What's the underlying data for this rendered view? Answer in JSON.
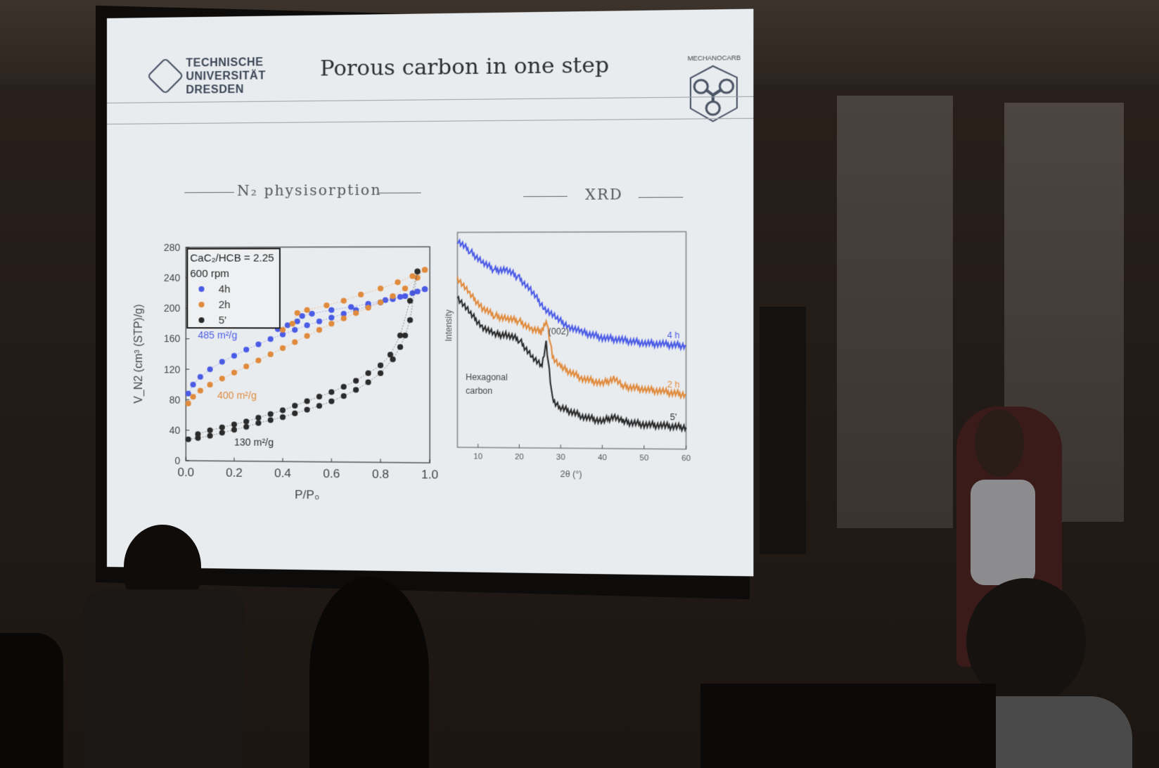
{
  "slide": {
    "title": "Porous carbon in one step",
    "logo_left": [
      "TECHNISCHE",
      "UNIVERSITÄT",
      "DRESDEN"
    ],
    "logo_right": "MECHANOCARB",
    "left_section": "N₂ physisorption",
    "right_section": "XRD"
  },
  "chart_data": [
    {
      "type": "scatter",
      "title": "N₂ physisorption",
      "xlabel": "P/P₀",
      "ylabel": "V_N2 (cm³ (STP)/g)",
      "xlim": [
        0.0,
        1.0
      ],
      "ylim": [
        0,
        280
      ],
      "xticks": [
        "0.0",
        "0.2",
        "0.4",
        "0.6",
        "0.8",
        "1.0"
      ],
      "yticks": [
        "0",
        "40",
        "80",
        "120",
        "160",
        "200",
        "240",
        "280"
      ],
      "legend_title": [
        "CaC₂/HCB = 2.25",
        "600 rpm"
      ],
      "legend_placement": "top-left",
      "series": [
        {
          "name": "4h",
          "color": "#4a5be6",
          "annotation": "485 m²/g",
          "adsorption": [
            [
              0.01,
              88
            ],
            [
              0.03,
              100
            ],
            [
              0.06,
              110
            ],
            [
              0.1,
              120
            ],
            [
              0.15,
              130
            ],
            [
              0.2,
              138
            ],
            [
              0.25,
              146
            ],
            [
              0.3,
              153
            ],
            [
              0.35,
              160
            ],
            [
              0.4,
              166
            ],
            [
              0.45,
              172
            ],
            [
              0.5,
              178
            ],
            [
              0.55,
              183
            ],
            [
              0.6,
              188
            ],
            [
              0.65,
              193
            ],
            [
              0.7,
              198
            ],
            [
              0.75,
              203
            ],
            [
              0.8,
              208
            ],
            [
              0.85,
              212
            ],
            [
              0.9,
              216
            ],
            [
              0.95,
              222
            ],
            [
              0.98,
              225
            ]
          ],
          "desorption": [
            [
              0.98,
              225
            ],
            [
              0.93,
              220
            ],
            [
              0.88,
              215
            ],
            [
              0.82,
              211
            ],
            [
              0.75,
              206
            ],
            [
              0.68,
              202
            ],
            [
              0.6,
              198
            ],
            [
              0.52,
              193
            ],
            [
              0.48,
              190
            ],
            [
              0.46,
              183
            ],
            [
              0.42,
              178
            ],
            [
              0.38,
              173
            ]
          ]
        },
        {
          "name": "2h",
          "color": "#e08a3c",
          "annotation": "400 m²/g",
          "adsorption": [
            [
              0.01,
              75
            ],
            [
              0.03,
              84
            ],
            [
              0.06,
              92
            ],
            [
              0.1,
              100
            ],
            [
              0.15,
              108
            ],
            [
              0.2,
              116
            ],
            [
              0.25,
              124
            ],
            [
              0.3,
              132
            ],
            [
              0.35,
              140
            ],
            [
              0.4,
              148
            ],
            [
              0.45,
              156
            ],
            [
              0.5,
              164
            ],
            [
              0.55,
              172
            ],
            [
              0.6,
              180
            ],
            [
              0.65,
              187
            ],
            [
              0.7,
              194
            ],
            [
              0.75,
              201
            ],
            [
              0.8,
              208
            ],
            [
              0.85,
              216
            ],
            [
              0.9,
              226
            ],
            [
              0.95,
              240
            ],
            [
              0.98,
              250
            ]
          ],
          "desorption": [
            [
              0.98,
              250
            ],
            [
              0.93,
              242
            ],
            [
              0.87,
              234
            ],
            [
              0.8,
              226
            ],
            [
              0.72,
              218
            ],
            [
              0.65,
              210
            ],
            [
              0.58,
              204
            ],
            [
              0.5,
              198
            ],
            [
              0.46,
              194
            ],
            [
              0.44,
              180
            ],
            [
              0.4,
              172
            ]
          ]
        },
        {
          "name": "5'",
          "color": "#2b2b2b",
          "annotation": "130 m²/g",
          "adsorption": [
            [
              0.01,
              28
            ],
            [
              0.05,
              30
            ],
            [
              0.1,
              33
            ],
            [
              0.15,
              37
            ],
            [
              0.2,
              41
            ],
            [
              0.25,
              45
            ],
            [
              0.3,
              50
            ],
            [
              0.35,
              54
            ],
            [
              0.4,
              58
            ],
            [
              0.45,
              63
            ],
            [
              0.5,
              68
            ],
            [
              0.55,
              73
            ],
            [
              0.6,
              79
            ],
            [
              0.65,
              86
            ],
            [
              0.7,
              94
            ],
            [
              0.75,
              104
            ],
            [
              0.8,
              116
            ],
            [
              0.85,
              134
            ],
            [
              0.88,
              150
            ],
            [
              0.9,
              165
            ],
            [
              0.92,
              185
            ],
            [
              0.95,
              248
            ]
          ],
          "desorption": [
            [
              0.95,
              248
            ],
            [
              0.92,
              210
            ],
            [
              0.88,
              165
            ],
            [
              0.84,
              140
            ],
            [
              0.8,
              126
            ],
            [
              0.75,
              116
            ],
            [
              0.7,
              106
            ],
            [
              0.65,
              98
            ],
            [
              0.6,
              91
            ],
            [
              0.55,
              85
            ],
            [
              0.5,
              79
            ],
            [
              0.45,
              73
            ],
            [
              0.4,
              67
            ],
            [
              0.35,
              62
            ],
            [
              0.3,
              57
            ],
            [
              0.25,
              52
            ],
            [
              0.2,
              48
            ],
            [
              0.15,
              44
            ],
            [
              0.1,
              40
            ],
            [
              0.05,
              35
            ]
          ]
        }
      ]
    },
    {
      "type": "line",
      "title": "XRD",
      "xlabel": "2θ (°)",
      "ylabel": "Intensity",
      "xlim": [
        5,
        60
      ],
      "xticks": [
        "10",
        "20",
        "30",
        "40",
        "50",
        "60"
      ],
      "annotations": [
        "(002)",
        "Hexagonal",
        "carbon"
      ],
      "series": [
        {
          "name": "4 h",
          "color": "#4a5be6",
          "x": [
            5,
            8,
            11,
            14,
            17,
            20,
            23,
            26,
            29,
            32,
            35,
            40,
            45,
            50,
            55,
            60
          ],
          "y": [
            9.7,
            9.3,
            8.9,
            8.6,
            8.6,
            8.3,
            7.8,
            7.2,
            6.8,
            6.5,
            6.3,
            6.1,
            6.0,
            5.9,
            5.85,
            5.8
          ]
        },
        {
          "name": "2 h",
          "color": "#e08a3c",
          "x": [
            5,
            8,
            11,
            14,
            17,
            20,
            23,
            25.5,
            26.5,
            28,
            30,
            35,
            40,
            43,
            45,
            50,
            55,
            60
          ],
          "y": [
            8.3,
            7.7,
            7.2,
            6.9,
            6.8,
            6.7,
            6.4,
            6.3,
            6.8,
            5.4,
            5.0,
            4.6,
            4.4,
            4.6,
            4.3,
            4.2,
            4.1,
            4.0
          ]
        },
        {
          "name": "5'",
          "color": "#2b2b2b",
          "x": [
            5,
            8,
            11,
            14,
            17,
            20,
            23,
            25.5,
            26.5,
            28,
            30,
            35,
            40,
            43,
            45,
            50,
            55,
            60
          ],
          "y": [
            7.6,
            7.0,
            6.5,
            6.2,
            6.2,
            6.0,
            5.4,
            5.0,
            5.9,
            3.8,
            3.5,
            3.2,
            3.0,
            3.2,
            3.0,
            2.9,
            2.85,
            2.8
          ]
        }
      ]
    }
  ]
}
